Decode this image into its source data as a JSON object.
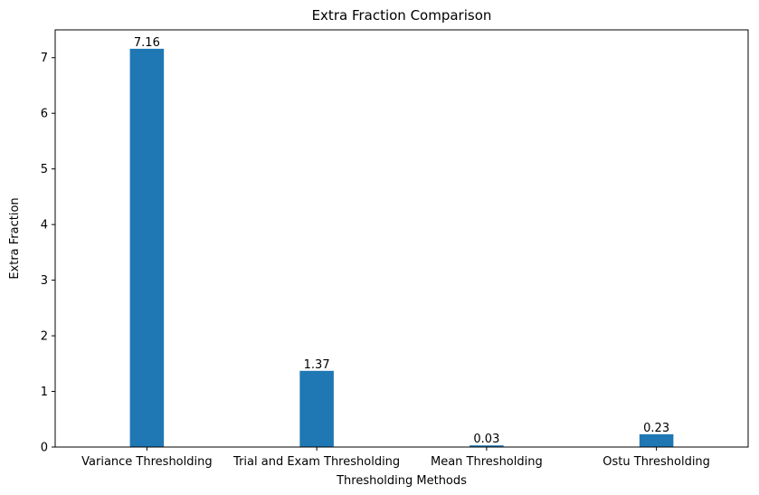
{
  "chart_data": {
    "type": "bar",
    "title": "Extra Fraction Comparison",
    "xlabel": "Thresholding Methods",
    "ylabel": "Extra Fraction",
    "categories": [
      "Variance Thresholding",
      "Trial and Exam Thresholding",
      "Mean Thresholding",
      "Ostu Thresholding"
    ],
    "values": [
      7.16,
      1.37,
      0.03,
      0.23
    ],
    "value_labels": [
      "7.16",
      "1.37",
      "0.03",
      "0.23"
    ],
    "ylim": [
      0,
      7.5
    ],
    "yticks": [
      0,
      1,
      2,
      3,
      4,
      5,
      6,
      7
    ],
    "ytick_labels": [
      "0",
      "1",
      "2",
      "3",
      "4",
      "5",
      "6",
      "7"
    ],
    "grid": false,
    "bar_color": "#1f77b4"
  }
}
